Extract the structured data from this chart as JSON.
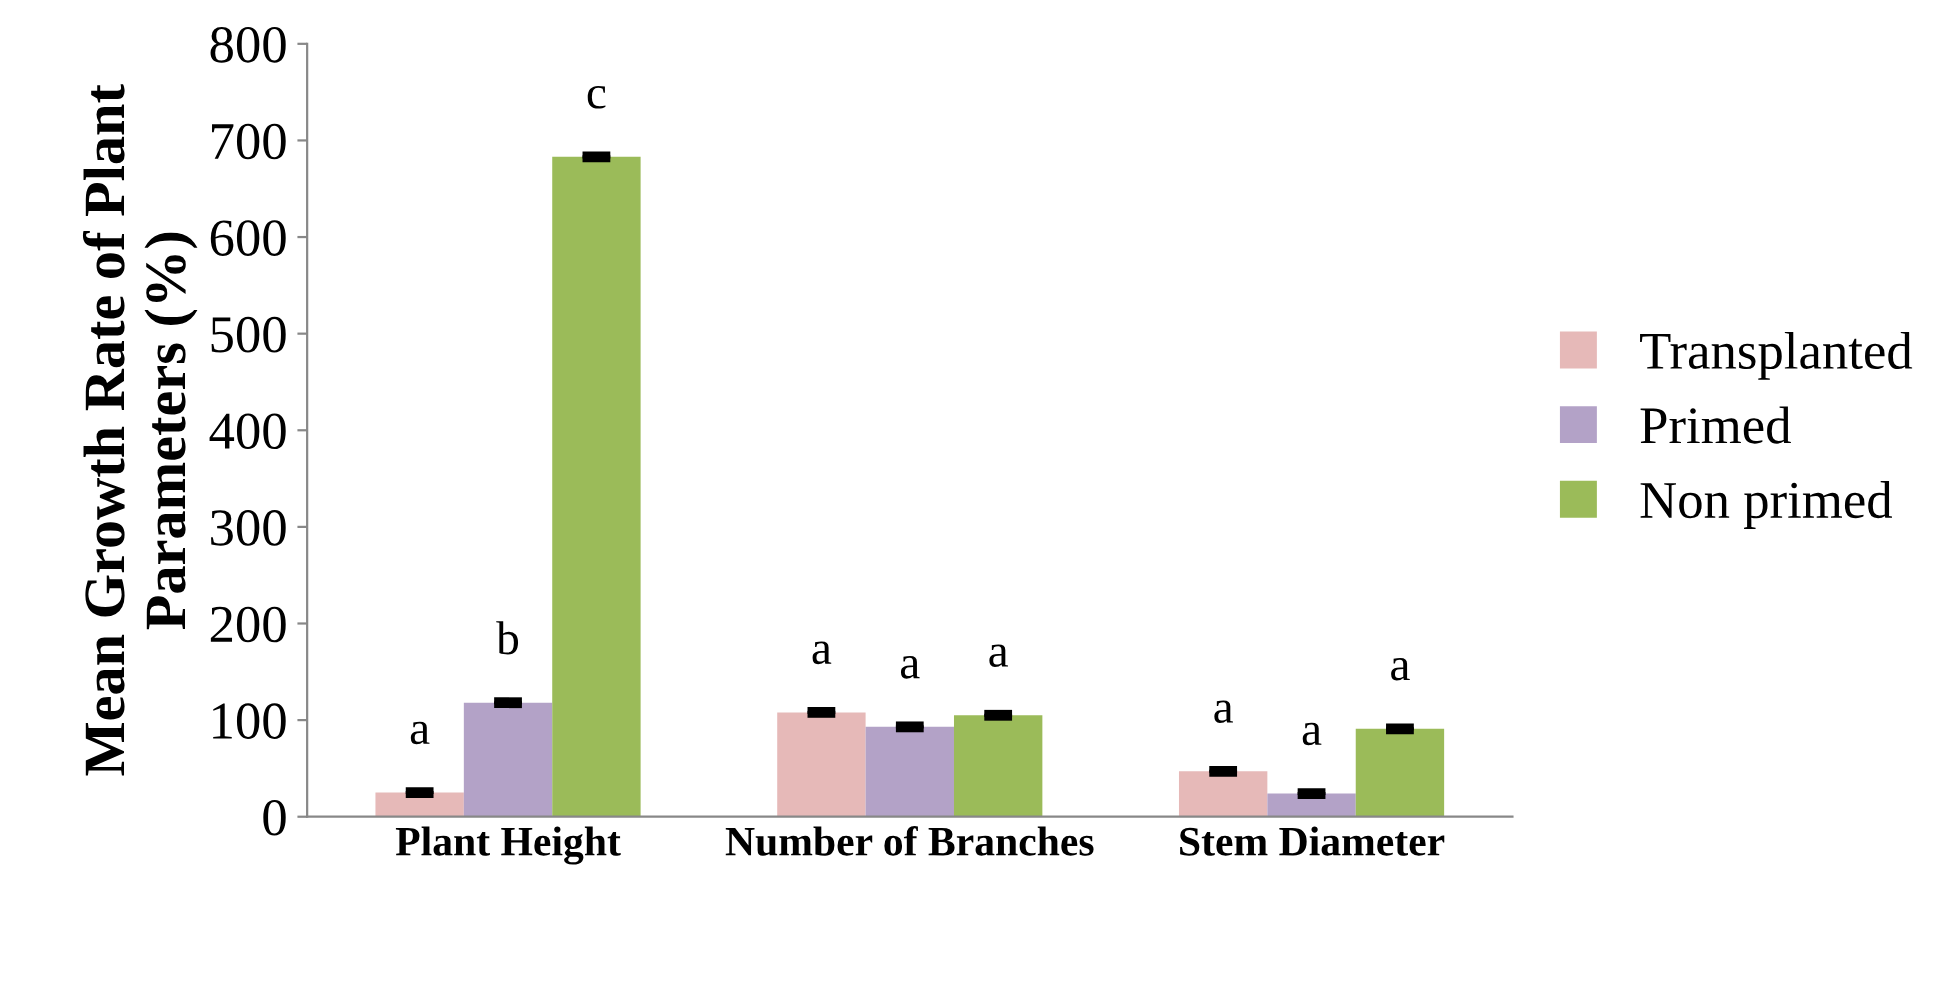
{
  "chart_data": {
    "type": "bar",
    "ylabel": "Mean Growth Rate of Plant Parameters (%)",
    "categories": [
      "Plant Height",
      "Number of Branches",
      "Stem Diameter"
    ],
    "series": [
      {
        "name": "Transplanted",
        "color": "#e6b9b8",
        "values": [
          25,
          108,
          47
        ],
        "errors": [
          2,
          2,
          2
        ],
        "value_labels": [
          "a",
          "a",
          "a"
        ]
      },
      {
        "name": "Primed",
        "color": "#b3a2c7",
        "values": [
          118,
          93,
          24
        ],
        "errors": [
          2,
          2,
          2
        ],
        "value_labels": [
          "b",
          "a",
          "a"
        ]
      },
      {
        "name": "Non primed",
        "color": "#9bbb59",
        "values": [
          683,
          105,
          91
        ],
        "errors": [
          2,
          2,
          2
        ],
        "value_labels": [
          "c",
          "a",
          "a"
        ]
      }
    ],
    "ylim": [
      0,
      800
    ],
    "yticks": [
      0,
      100,
      200,
      300,
      400,
      500,
      600,
      700,
      800
    ],
    "grid": false,
    "legend": "right"
  }
}
